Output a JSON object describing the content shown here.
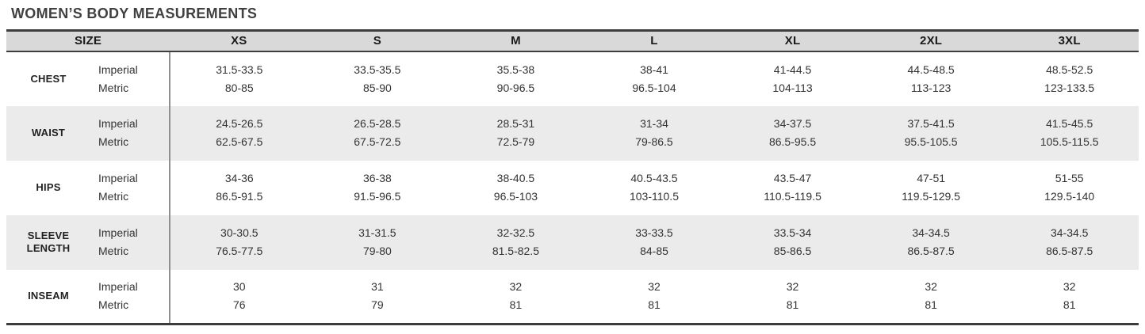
{
  "page": {
    "title": "WOMEN’S BODY MEASUREMENTS"
  },
  "theme": {
    "page_bg": "#ffffff",
    "title_color": "#404040",
    "header_bg": "#d9d9d9",
    "stripe_bg": "#ebebeb",
    "border_dark": "#3d3d3d",
    "divider": "#8f8f8f",
    "text": "#333333"
  },
  "table": {
    "size_header": "SIZE",
    "sizes": [
      "XS",
      "S",
      "M",
      "L",
      "XL",
      "2XL",
      "3XL"
    ],
    "unit_labels": {
      "imperial": "Imperial",
      "metric": "Metric"
    },
    "rows": [
      {
        "label": "CHEST",
        "imperial": [
          "31.5-33.5",
          "33.5-35.5",
          "35.5-38",
          "38-41",
          "41-44.5",
          "44.5-48.5",
          "48.5-52.5"
        ],
        "metric": [
          "80-85",
          "85-90",
          "90-96.5",
          "96.5-104",
          "104-113",
          "113-123",
          "123-133.5"
        ]
      },
      {
        "label": "WAIST",
        "imperial": [
          "24.5-26.5",
          "26.5-28.5",
          "28.5-31",
          "31-34",
          "34-37.5",
          "37.5-41.5",
          "41.5-45.5"
        ],
        "metric": [
          "62.5-67.5",
          "67.5-72.5",
          "72.5-79",
          "79-86.5",
          "86.5-95.5",
          "95.5-105.5",
          "105.5-115.5"
        ]
      },
      {
        "label": "HIPS",
        "imperial": [
          "34-36",
          "36-38",
          "38-40.5",
          "40.5-43.5",
          "43.5-47",
          "47-51",
          "51-55"
        ],
        "metric": [
          "86.5-91.5",
          "91.5-96.5",
          "96.5-103",
          "103-110.5",
          "110.5-119.5",
          "119.5-129.5",
          "129.5-140"
        ]
      },
      {
        "label": "SLEEVE LENGTH",
        "imperial": [
          "30-30.5",
          "31-31.5",
          "32-32.5",
          "33-33.5",
          "33.5-34",
          "34-34.5",
          "34-34.5"
        ],
        "metric": [
          "76.5-77.5",
          "79-80",
          "81.5-82.5",
          "84-85",
          "85-86.5",
          "86.5-87.5",
          "86.5-87.5"
        ]
      },
      {
        "label": "INSEAM",
        "imperial": [
          "30",
          "31",
          "32",
          "32",
          "32",
          "32",
          "32"
        ],
        "metric": [
          "76",
          "79",
          "81",
          "81",
          "81",
          "81",
          "81"
        ]
      }
    ]
  }
}
